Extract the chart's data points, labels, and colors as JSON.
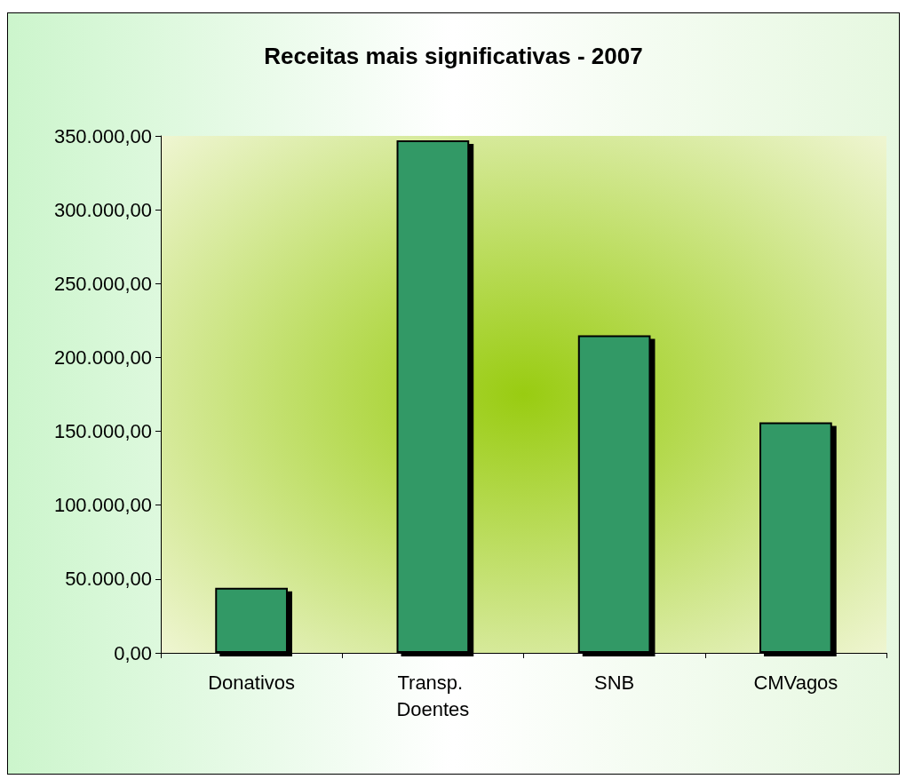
{
  "chart_data": {
    "type": "bar",
    "title": "Receitas mais significativas - 2007",
    "categories": [
      "Donativos",
      "Transp. Doentes",
      "SNB",
      "CMVagos"
    ],
    "values": [
      44000,
      347000,
      215000,
      156000
    ],
    "color": "#339966",
    "ylim": [
      0,
      350000
    ],
    "yticks": [
      {
        "value": 0,
        "label": "0,00"
      },
      {
        "value": 50000,
        "label": "50.000,00"
      },
      {
        "value": 100000,
        "label": "100.000,00"
      },
      {
        "value": 150000,
        "label": "150.000,00"
      },
      {
        "value": 200000,
        "label": "200.000,00"
      },
      {
        "value": 250000,
        "label": "250.000,00"
      },
      {
        "value": 300000,
        "label": "300.000,00"
      },
      {
        "value": 350000,
        "label": "350.000,00"
      }
    ],
    "grid": false
  }
}
